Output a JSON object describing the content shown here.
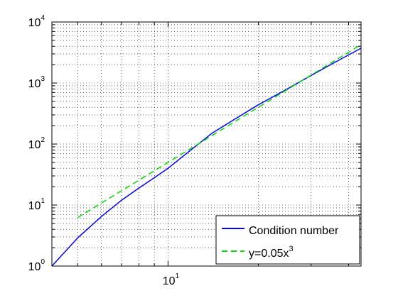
{
  "chart_data": {
    "type": "line",
    "title": "",
    "xlabel": "",
    "ylabel": "",
    "xscale": "log",
    "yscale": "log",
    "xlim": [
      4.1,
      44
    ],
    "ylim": [
      1,
      10000
    ],
    "grid": true,
    "x_ticks": [
      {
        "base": "10",
        "exp": "1",
        "value": 10
      }
    ],
    "y_ticks": [
      {
        "base": "10",
        "exp": "0",
        "value": 1
      },
      {
        "base": "10",
        "exp": "1",
        "value": 10
      },
      {
        "base": "10",
        "exp": "2",
        "value": 100
      },
      {
        "base": "10",
        "exp": "3",
        "value": 1000
      },
      {
        "base": "10",
        "exp": "4",
        "value": 10000
      }
    ],
    "series": [
      {
        "name": "Condition number",
        "color": "#0000ff",
        "style": "solid",
        "x": [
          4.1,
          5,
          6,
          7,
          8,
          9,
          10,
          12,
          14,
          17,
          20,
          25,
          30,
          35,
          40,
          44
        ],
        "y": [
          1.0,
          2.9,
          6.5,
          12,
          19,
          28,
          40,
          82,
          150,
          270,
          440,
          800,
          1330,
          2030,
          2890,
          3710
        ]
      },
      {
        "name": "y=0.05x",
        "name_superscript": "3",
        "color": "#00dd00",
        "style": "dashed",
        "x": [
          5,
          6,
          7,
          8,
          9,
          10,
          12,
          14,
          17,
          20,
          25,
          30,
          35,
          40,
          44
        ],
        "y": [
          6.25,
          10.8,
          17.15,
          25.6,
          36.45,
          50,
          86.4,
          137.2,
          245.65,
          400,
          781.25,
          1350,
          2143.75,
          3200,
          4259.2
        ]
      }
    ],
    "legend": {
      "position": "bottom-right",
      "entries": [
        {
          "label": "Condition number",
          "color": "#0000ff",
          "style": "solid"
        },
        {
          "label": "y=0.05x",
          "superscript": "3",
          "color": "#00dd00",
          "style": "dashed"
        }
      ]
    }
  }
}
